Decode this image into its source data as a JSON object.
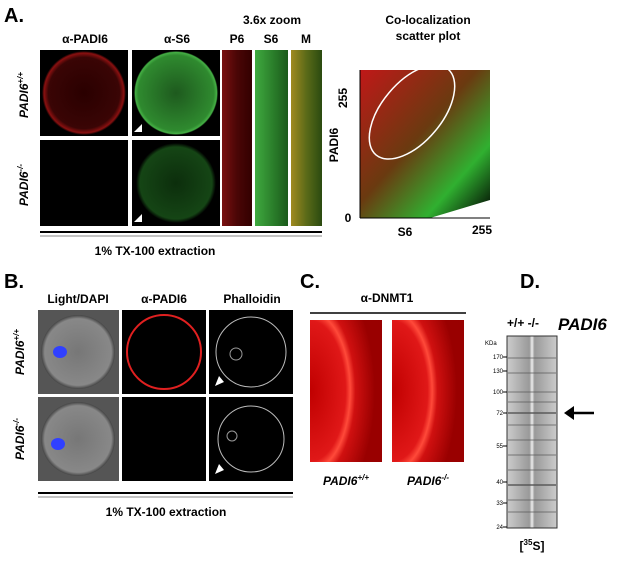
{
  "panel_a": {
    "letter": "A.",
    "columns": [
      "α-PADI6",
      "α-S6"
    ],
    "zoom_title": "3.6x  zoom",
    "zoom_columns": [
      "P6",
      "S6",
      "M"
    ],
    "rows": [
      {
        "gene": "PADI6",
        "genotype": "+/+"
      },
      {
        "gene": "PADI6",
        "genotype": "-/-"
      }
    ],
    "footer": "1% TX-100 extraction",
    "scatter": {
      "title": [
        "Co-localization",
        "scatter plot"
      ],
      "y_label": "PADI6",
      "x_label": "S6",
      "y_max": "255",
      "x_max": "255",
      "origin": "0"
    }
  },
  "panel_b": {
    "letter": "B.",
    "columns": [
      "Light/DAPI",
      "α-PADI6",
      "Phalloidin"
    ],
    "rows": [
      {
        "gene": "PADI6",
        "genotype": "+/+"
      },
      {
        "gene": "PADI6",
        "genotype": "-/-"
      }
    ],
    "footer": "1% TX-100 extraction"
  },
  "panel_c": {
    "letter": "C.",
    "title": "α-DNMT1",
    "labels": [
      {
        "gene": "PADI6",
        "genotype": "+/+"
      },
      {
        "gene": "PADI6",
        "genotype": "-/-"
      }
    ]
  },
  "panel_d": {
    "letter": "D.",
    "lanes": "+/+  -/-",
    "gene": "PADI6",
    "unit": "KDa",
    "ladder": [
      "170",
      "130",
      "100",
      "72",
      "55",
      "40",
      "33",
      "24"
    ],
    "footer": {
      "open": "[",
      "sup": "35",
      "close": "S]"
    }
  }
}
